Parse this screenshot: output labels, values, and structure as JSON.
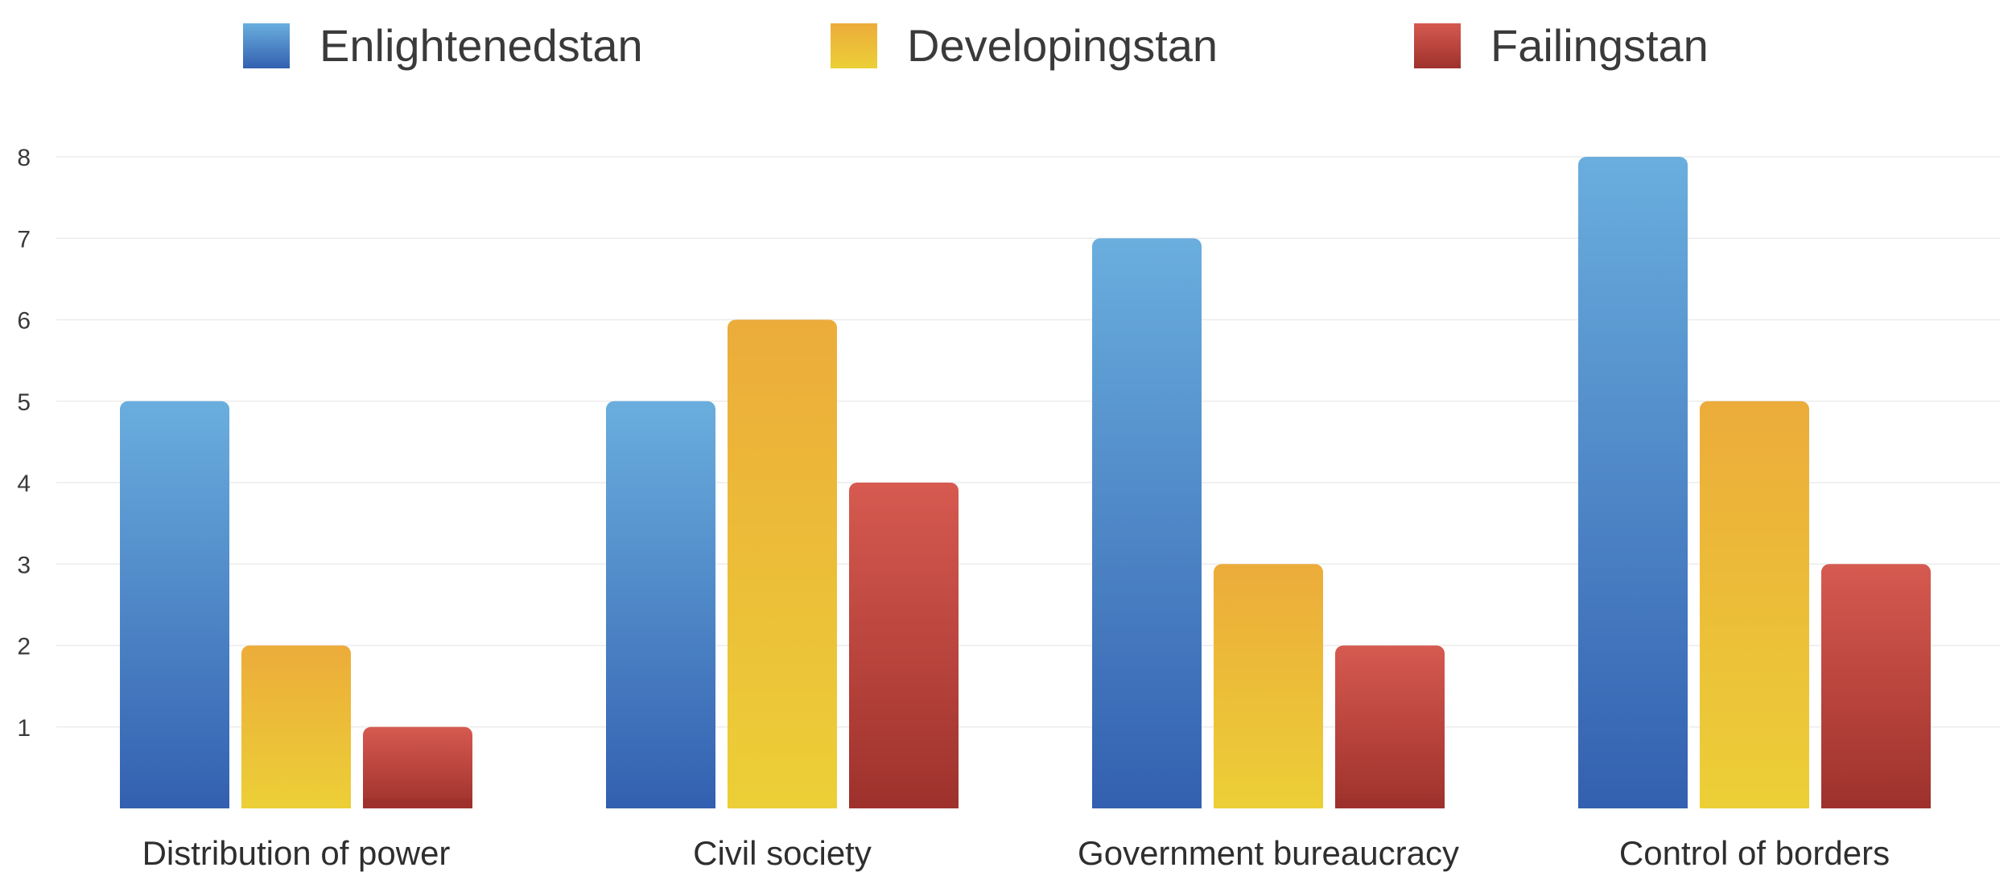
{
  "chart_data": {
    "type": "bar",
    "title": "",
    "xlabel": "",
    "ylabel": "",
    "ylim": [
      0,
      8
    ],
    "yticks": [
      1,
      2,
      3,
      4,
      5,
      6,
      7,
      8
    ],
    "grid": true,
    "legend_position": "top",
    "categories": [
      "Distribution of power",
      "Civil society",
      "Government bureaucracy",
      "Control of borders"
    ],
    "series": [
      {
        "name": "Enlightenedstan",
        "values": [
          5,
          5,
          7,
          8
        ],
        "color_top": "#6aaede",
        "color_bottom": "#3360b0"
      },
      {
        "name": "Developingstan",
        "values": [
          2,
          6,
          3,
          5
        ],
        "color_top": "#ecac3a",
        "color_bottom": "#eccf37"
      },
      {
        "name": "Failingstan",
        "values": [
          1,
          4,
          2,
          3
        ],
        "color_top": "#d65a50",
        "color_bottom": "#9e312c"
      }
    ]
  }
}
